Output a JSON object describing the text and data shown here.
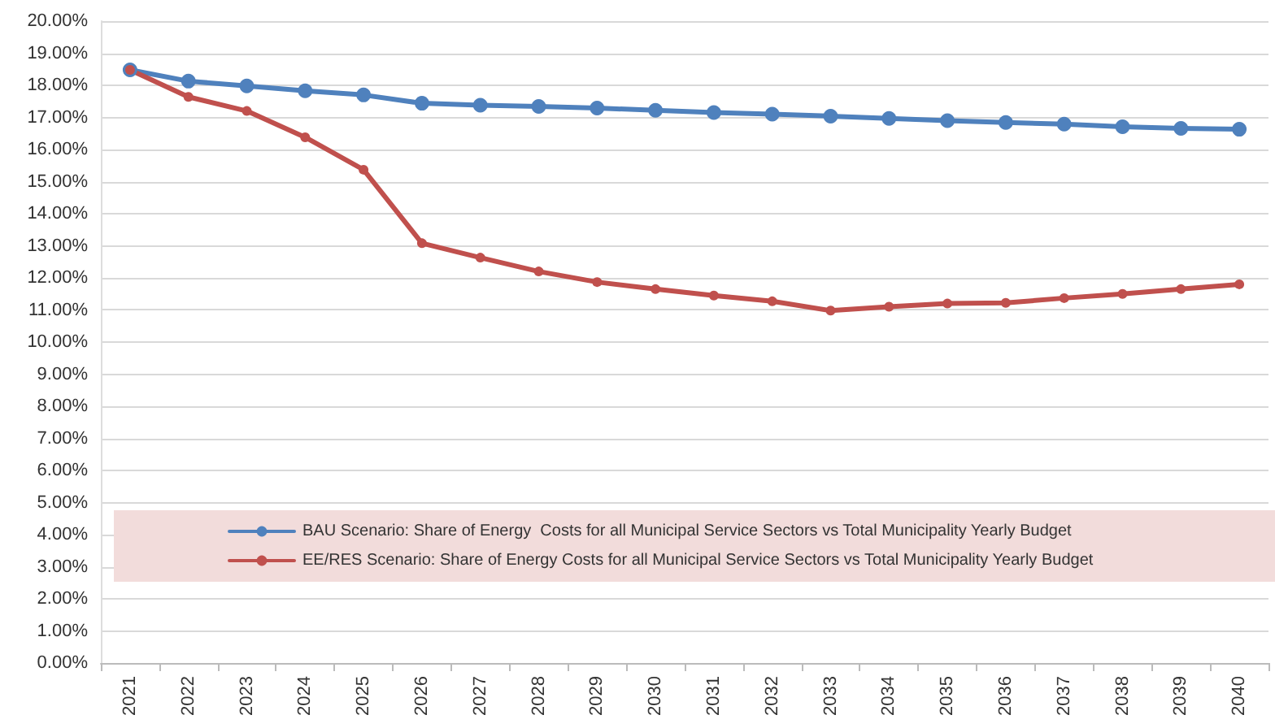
{
  "chart_data": {
    "type": "line",
    "categories": [
      "2021",
      "2022",
      "2023",
      "2024",
      "2025",
      "2026",
      "2027",
      "2028",
      "2029",
      "2030",
      "2031",
      "2032",
      "2033",
      "2034",
      "2035",
      "2036",
      "2037",
      "2038",
      "2039",
      "2040"
    ],
    "series": [
      {
        "name": "BAU Scenario: Share of Energy  Costs for all Municipal Service Sectors vs Total Municipality Yearly Budget",
        "color": "#4f81bd",
        "values": [
          18.48,
          18.13,
          17.98,
          17.83,
          17.7,
          17.44,
          17.38,
          17.34,
          17.29,
          17.22,
          17.15,
          17.1,
          17.04,
          16.97,
          16.9,
          16.84,
          16.79,
          16.71,
          16.66,
          16.63
        ]
      },
      {
        "name": "EE/RES Scenario: Share of Energy Costs for all Municipal Service Sectors vs Total Municipality Yearly Budget",
        "color": "#c0504d",
        "values": [
          18.48,
          17.64,
          17.2,
          16.38,
          15.37,
          13.08,
          12.63,
          12.2,
          11.87,
          11.65,
          11.45,
          11.27,
          10.98,
          11.1,
          11.2,
          11.22,
          11.37,
          11.5,
          11.65,
          11.8
        ]
      }
    ],
    "ylim": [
      0,
      20
    ],
    "yticks": [
      {
        "value": 0,
        "label": "0.00%"
      },
      {
        "value": 1,
        "label": "1.00%"
      },
      {
        "value": 2,
        "label": "2.00%"
      },
      {
        "value": 3,
        "label": "3.00%"
      },
      {
        "value": 4,
        "label": "4.00%"
      },
      {
        "value": 5,
        "label": "5.00%"
      },
      {
        "value": 6,
        "label": "6.00%"
      },
      {
        "value": 7,
        "label": "7.00%"
      },
      {
        "value": 8,
        "label": "8.00%"
      },
      {
        "value": 9,
        "label": "9.00%"
      },
      {
        "value": 10,
        "label": "10.00%"
      },
      {
        "value": 11,
        "label": "11.00%"
      },
      {
        "value": 12,
        "label": "12.00%"
      },
      {
        "value": 13,
        "label": "13.00%"
      },
      {
        "value": 14,
        "label": "14.00%"
      },
      {
        "value": 15,
        "label": "15.00%"
      },
      {
        "value": 16,
        "label": "16.00%"
      },
      {
        "value": 17,
        "label": "17.00%"
      },
      {
        "value": 18,
        "label": "18.00%"
      },
      {
        "value": 19,
        "label": "19.00%"
      },
      {
        "value": 20,
        "label": "20.00%"
      }
    ],
    "grid": "y",
    "legend": "bottom",
    "marker": "circle",
    "line_style": "solid"
  }
}
